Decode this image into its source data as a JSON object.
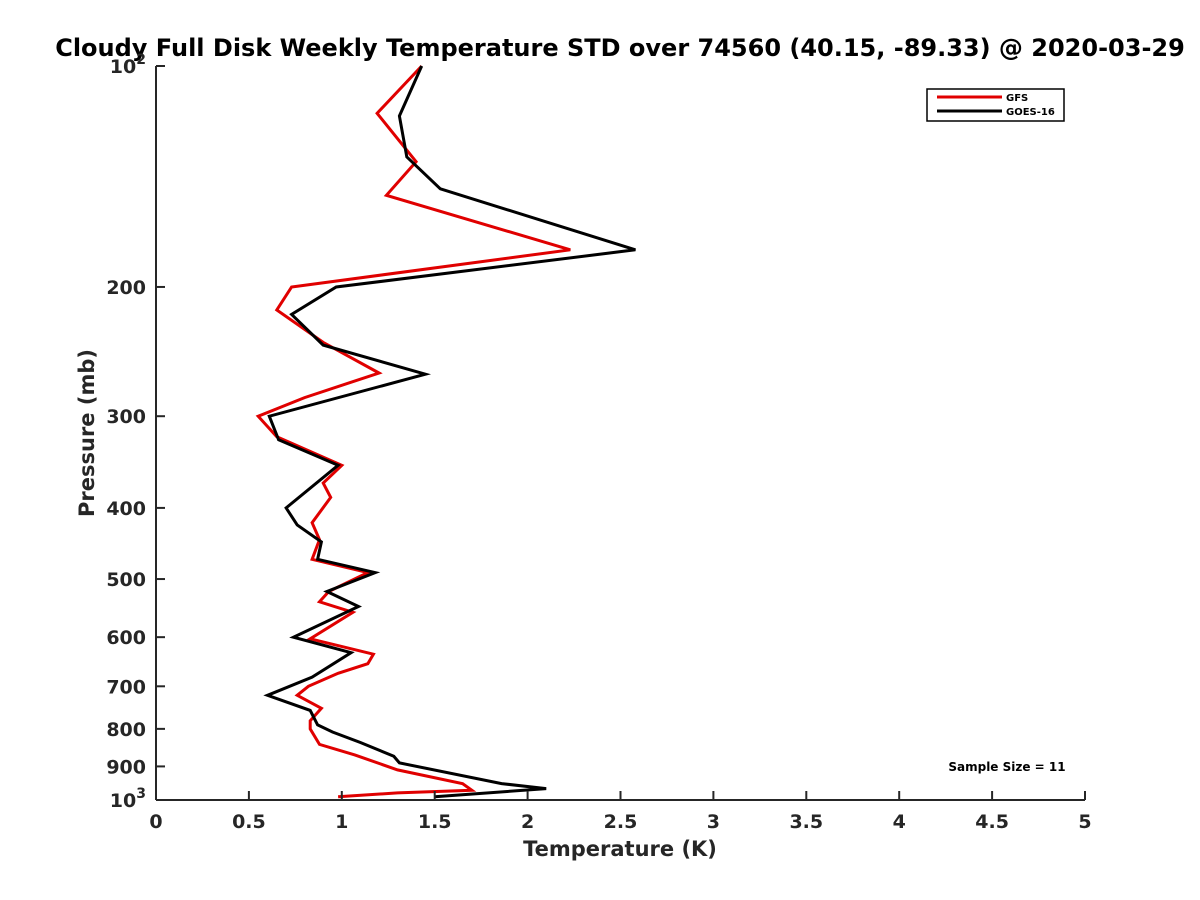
{
  "chart_data": {
    "type": "line",
    "title": "Cloudy Full Disk Weekly Temperature STD over 74560 (40.15, -89.33) @ 2020-03-29",
    "xlabel": "Temperature (K)",
    "ylabel": "Pressure (mb)",
    "xlim": [
      0,
      5
    ],
    "ylim": [
      1000,
      100
    ],
    "y_scale": "log",
    "y_reversed": true,
    "x_ticks": [
      {
        "value": 0,
        "label": "0"
      },
      {
        "value": 0.5,
        "label": "0.5"
      },
      {
        "value": 1,
        "label": "1"
      },
      {
        "value": 1.5,
        "label": "1.5"
      },
      {
        "value": 2,
        "label": "2"
      },
      {
        "value": 2.5,
        "label": "2.5"
      },
      {
        "value": 3,
        "label": "3"
      },
      {
        "value": 3.5,
        "label": "3.5"
      },
      {
        "value": 4,
        "label": "4"
      },
      {
        "value": 4.5,
        "label": "4.5"
      },
      {
        "value": 5,
        "label": "5"
      }
    ],
    "y_ticks": [
      {
        "value": 100,
        "base": "10",
        "exp": "2"
      },
      {
        "value": 200,
        "label": "200"
      },
      {
        "value": 300,
        "label": "300"
      },
      {
        "value": 400,
        "label": "400"
      },
      {
        "value": 500,
        "label": "500"
      },
      {
        "value": 600,
        "label": "600"
      },
      {
        "value": 700,
        "label": "700"
      },
      {
        "value": 800,
        "label": "800"
      },
      {
        "value": 900,
        "label": "900"
      },
      {
        "value": 1000,
        "base": "10",
        "exp": "3"
      }
    ],
    "grid": false,
    "legend_position": "top-right",
    "annotation": "Sample Size = 11",
    "series": [
      {
        "name": "GFS",
        "color": "#e00000",
        "points": [
          {
            "x": 1.43,
            "p": 100
          },
          {
            "x": 1.19,
            "p": 116
          },
          {
            "x": 1.4,
            "p": 135
          },
          {
            "x": 1.24,
            "p": 150
          },
          {
            "x": 2.23,
            "p": 178
          },
          {
            "x": 0.73,
            "p": 200
          },
          {
            "x": 0.65,
            "p": 215
          },
          {
            "x": 0.9,
            "p": 238
          },
          {
            "x": 1.2,
            "p": 262
          },
          {
            "x": 0.8,
            "p": 283
          },
          {
            "x": 0.55,
            "p": 300
          },
          {
            "x": 0.65,
            "p": 320
          },
          {
            "x": 1.0,
            "p": 350
          },
          {
            "x": 0.9,
            "p": 370
          },
          {
            "x": 0.94,
            "p": 387
          },
          {
            "x": 0.84,
            "p": 419
          },
          {
            "x": 0.88,
            "p": 442
          },
          {
            "x": 0.84,
            "p": 470
          },
          {
            "x": 1.14,
            "p": 490
          },
          {
            "x": 0.93,
            "p": 520
          },
          {
            "x": 0.88,
            "p": 537
          },
          {
            "x": 1.06,
            "p": 555
          },
          {
            "x": 0.83,
            "p": 603
          },
          {
            "x": 1.17,
            "p": 633
          },
          {
            "x": 1.14,
            "p": 652
          },
          {
            "x": 0.98,
            "p": 672
          },
          {
            "x": 0.82,
            "p": 700
          },
          {
            "x": 0.76,
            "p": 720
          },
          {
            "x": 0.89,
            "p": 750
          },
          {
            "x": 0.83,
            "p": 780
          },
          {
            "x": 0.83,
            "p": 800
          },
          {
            "x": 0.88,
            "p": 840
          },
          {
            "x": 1.07,
            "p": 868
          },
          {
            "x": 1.3,
            "p": 910
          },
          {
            "x": 1.65,
            "p": 950
          },
          {
            "x": 1.7,
            "p": 970
          },
          {
            "x": 1.3,
            "p": 978
          },
          {
            "x": 0.98,
            "p": 990
          }
        ]
      },
      {
        "name": "GOES-16",
        "color": "#000000",
        "points": [
          {
            "x": 1.43,
            "p": 100
          },
          {
            "x": 1.31,
            "p": 117
          },
          {
            "x": 1.35,
            "p": 133
          },
          {
            "x": 1.53,
            "p": 147
          },
          {
            "x": 2.58,
            "p": 178
          },
          {
            "x": 0.97,
            "p": 200
          },
          {
            "x": 0.73,
            "p": 218
          },
          {
            "x": 0.9,
            "p": 240
          },
          {
            "x": 1.45,
            "p": 263
          },
          {
            "x": 0.61,
            "p": 300
          },
          {
            "x": 0.66,
            "p": 323
          },
          {
            "x": 0.98,
            "p": 350
          },
          {
            "x": 0.7,
            "p": 400
          },
          {
            "x": 0.76,
            "p": 422
          },
          {
            "x": 0.89,
            "p": 445
          },
          {
            "x": 0.87,
            "p": 470
          },
          {
            "x": 1.18,
            "p": 490
          },
          {
            "x": 0.92,
            "p": 520
          },
          {
            "x": 1.09,
            "p": 545
          },
          {
            "x": 0.74,
            "p": 600
          },
          {
            "x": 1.05,
            "p": 630
          },
          {
            "x": 0.84,
            "p": 680
          },
          {
            "x": 0.6,
            "p": 720
          },
          {
            "x": 0.83,
            "p": 755
          },
          {
            "x": 0.87,
            "p": 790
          },
          {
            "x": 0.95,
            "p": 808
          },
          {
            "x": 1.1,
            "p": 835
          },
          {
            "x": 1.28,
            "p": 872
          },
          {
            "x": 1.31,
            "p": 890
          },
          {
            "x": 1.86,
            "p": 950
          },
          {
            "x": 2.1,
            "p": 965
          },
          {
            "x": 1.5,
            "p": 990
          }
        ]
      }
    ]
  }
}
